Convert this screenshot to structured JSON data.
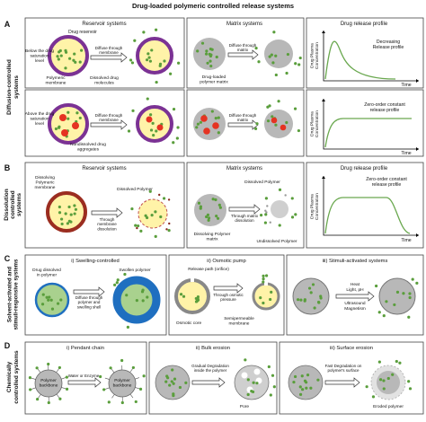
{
  "title": "Drug-loaded polymeric controlled release systems",
  "A": {
    "letter": "A",
    "side": [
      "Diffusion-controlled",
      "systems"
    ],
    "headers": [
      "Reservoir systems",
      "Matrix systems",
      "Drug release profile"
    ],
    "row1": {
      "drug_reservoir": "Drug reservoir",
      "below": [
        "Below the drug",
        "saturation",
        "level"
      ],
      "membrane": [
        "Polymeric",
        "membrane"
      ],
      "dissolved": [
        "Dissolved drug",
        "molecules"
      ],
      "diffuse_membrane": [
        "Diffuse through",
        "membrane"
      ],
      "diffuse_matrix": [
        "Diffuse through",
        "matrix"
      ],
      "matrix": [
        "Drug-loaded",
        "polymer matrix"
      ],
      "y_label": [
        "Drug Plasma",
        "Concentration"
      ],
      "profile": [
        "Decreasing",
        "Release profile"
      ],
      "x_label": "Time"
    },
    "row2": {
      "above": [
        "Above the drug",
        "saturation",
        "level"
      ],
      "diffuse_membrane": [
        "Diffuse through",
        "membrane"
      ],
      "aggregates": [
        "Nondissolved drug",
        "aggregates"
      ],
      "diffuse_matrix": [
        "Diffuse through",
        "matrix"
      ],
      "y_label": [
        "Drug Plasma",
        "Concentration"
      ],
      "profile": [
        "Zero-order constant",
        "release profile"
      ],
      "x_label": "Time"
    }
  },
  "B": {
    "letter": "B",
    "side": [
      "Dissolution",
      "controlled",
      "systems"
    ],
    "headers": [
      "Reservoir systems",
      "Matrix systems",
      "Drug release profile"
    ],
    "dissolving_membrane": [
      "Dissolving",
      "Polymeric",
      "membrane"
    ],
    "dissolved_polymer_1": "Dissolved Polymer",
    "membrane_dissolution": [
      "Through",
      "membrane",
      "dissolution"
    ],
    "dissolved_polymer_2": "Dissolved Polymer",
    "matrix_dissolution": [
      "Through matrix",
      "dissolution"
    ],
    "dissolving_matrix": [
      "Dissolving Polymer",
      "matrix"
    ],
    "undissolved": "Undissolved Polymer",
    "y_label": [
      "Drug Plasma",
      "Concentration"
    ],
    "profile": [
      "Zero-order constant",
      "release profile"
    ],
    "x_label": "Time"
  },
  "C": {
    "letter": "C",
    "side": [
      "Solvent-activated and",
      "stimuli-responsive systems"
    ],
    "headers": [
      "i) Swelling-controlled",
      "ii) Osmotic pump",
      "iii) Stimuli-activated systems"
    ],
    "drug_dissolved": [
      "Drug dissolved",
      "in polymer"
    ],
    "diffuse_swelling": [
      "Diffuse through",
      "polymer and",
      "swelling shell"
    ],
    "swollen": "Swollen polymer",
    "orifice": "Release path (orifice)",
    "osmotic_pressure": [
      "Through osmotic",
      "pressure"
    ],
    "osmotic_core": "Osmotic core",
    "semipermeable": [
      "Semipermeable",
      "membrane"
    ],
    "stimuli": [
      "Heat",
      "Light, pH",
      "Ultrasound",
      "Magnetism"
    ]
  },
  "D": {
    "letter": "D",
    "side": [
      "Chemically",
      "controlled systems"
    ],
    "headers": [
      "i) Pendant chain",
      "ii) Bulk erosion",
      "iii) Surface erosion"
    ],
    "backbone_1": [
      "Polymer",
      "backbone"
    ],
    "water_enzyme": "Water or Enzyme",
    "backbone_2": [
      "Polymer",
      "backbone"
    ],
    "gradual": [
      "Gradual Degradation",
      "inside the polymer"
    ],
    "pore": "Pore",
    "fast": [
      "Fast Degradation on",
      "polymer's surface"
    ],
    "eroded": "Eroded polymer"
  }
}
